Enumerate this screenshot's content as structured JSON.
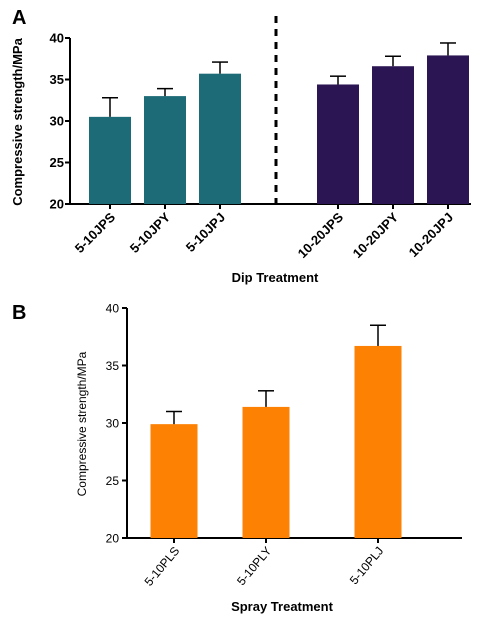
{
  "chart_data": [
    {
      "panel": "A",
      "type": "bar",
      "title": "",
      "xlabel": "Dip Treatment",
      "ylabel": "Compressive strength/MPa",
      "ylim": [
        20,
        40
      ],
      "yticks": [
        20,
        25,
        30,
        35,
        40
      ],
      "grid": false,
      "divider": "dashed vertical line between groups",
      "categories": [
        "5-10JPS",
        "5-10JPY",
        "5-10JPJ",
        "10-20JPS",
        "10-20JPY",
        "10-20JPJ"
      ],
      "values": [
        30.5,
        33.0,
        35.7,
        34.4,
        36.6,
        37.9
      ],
      "errors": [
        2.3,
        0.9,
        1.4,
        1.0,
        1.2,
        1.5
      ],
      "colors": [
        "#1d6b77",
        "#1d6b77",
        "#1d6b77",
        "#2b1552",
        "#2b1552",
        "#2b1552"
      ]
    },
    {
      "panel": "B",
      "type": "bar",
      "title": "",
      "xlabel": "Spray Treatment",
      "ylabel": "Compressive strength/MPa",
      "ylim": [
        20,
        40
      ],
      "yticks": [
        20,
        25,
        30,
        35,
        40
      ],
      "grid": false,
      "categories": [
        "5-10PLS",
        "5-10PLY",
        "5-10PLJ"
      ],
      "values": [
        29.9,
        31.4,
        36.7
      ],
      "errors": [
        1.1,
        1.4,
        1.8
      ],
      "colors": [
        "#fd8204",
        "#fd8204",
        "#fd8204"
      ]
    }
  ]
}
